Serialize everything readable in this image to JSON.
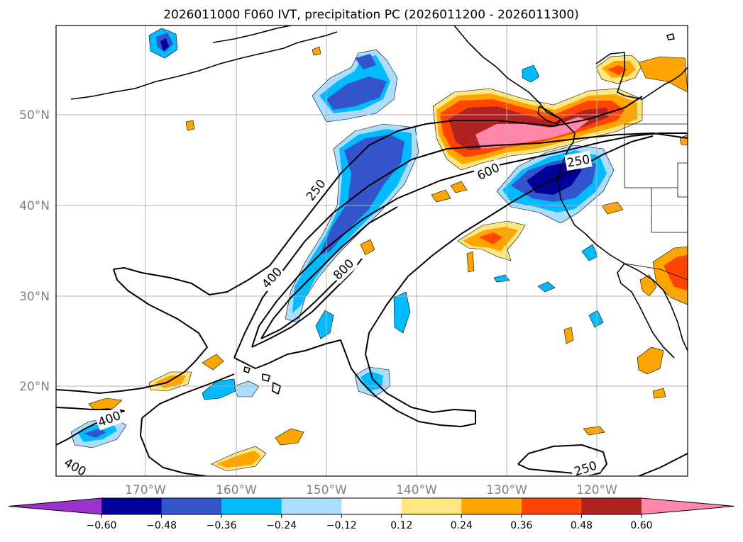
{
  "title": "2026011000 F060 IVT, precipitation PC (2026011200 - 2026011300)",
  "lat_labels": [
    "50°N",
    "40°N",
    "30°N",
    "20°N"
  ],
  "lon_labels": [
    "170°W",
    "160°W",
    "150°W",
    "140°W",
    "130°W",
    "120°W"
  ],
  "ivt_contour_labels": [
    "250",
    "400",
    "600",
    "800",
    "400",
    "400",
    "250",
    "250"
  ],
  "colorbar": {
    "ticks": [
      "−0.60",
      "−0.48",
      "−0.36",
      "−0.24",
      "−0.12",
      "0.12",
      "0.24",
      "0.36",
      "0.48",
      "0.60"
    ],
    "colors": [
      "#9933cc",
      "#000099",
      "#3355cc",
      "#00bbff",
      "#aaddff",
      "#ffffff",
      "#ffe680",
      "#ffa500",
      "#ff4500",
      "#b22222",
      "#ff88aa"
    ]
  },
  "colors": {
    "neg_06": "#000099",
    "neg_048": "#3355cc",
    "neg_036": "#00bbff",
    "neg_024": "#aaddff",
    "pos_024": "#ffe680",
    "pos_036": "#ffa500",
    "pos_048": "#ff4500",
    "pos_060": "#b22222",
    "pos_max": "#ff88aa"
  }
}
